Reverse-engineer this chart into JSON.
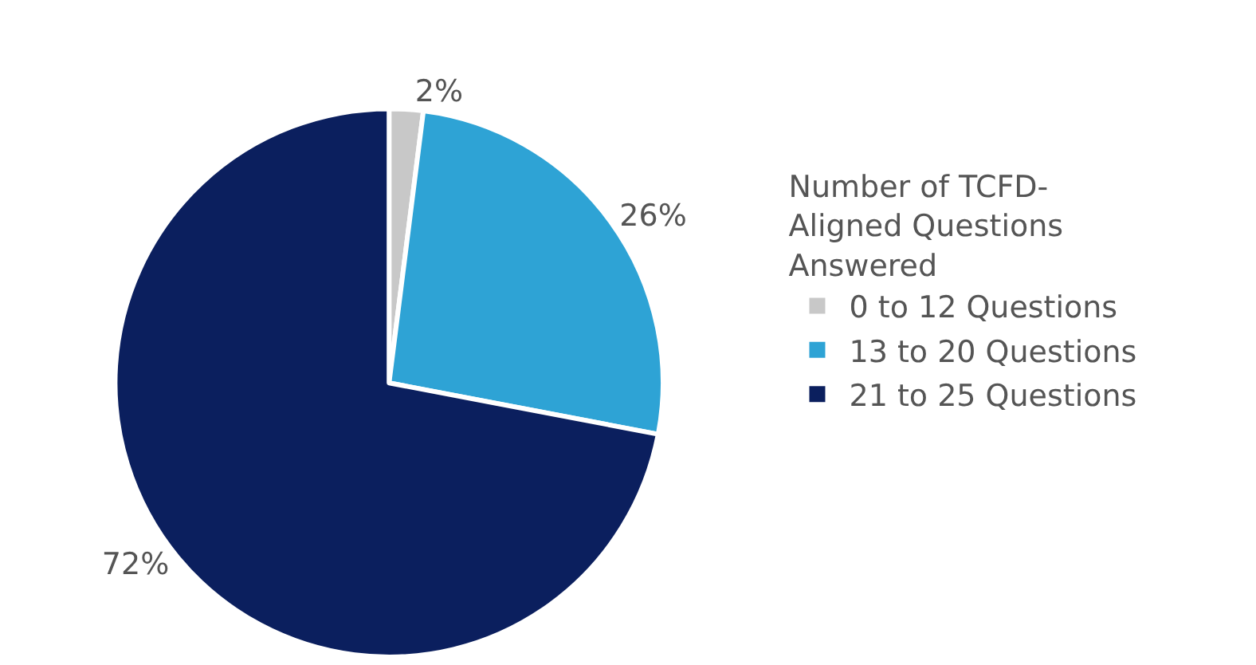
{
  "chart_data": {
    "type": "pie",
    "legend_title": "Number of TCFD-Aligned Questions Answered",
    "categories": [
      "0 to 12 Questions",
      "13 to 20 Questions",
      "21 to 25 Questions"
    ],
    "values": [
      2,
      26,
      72
    ],
    "colors": [
      "#c8c8c8",
      "#2ea3d5",
      "#0b1f5e"
    ],
    "value_labels": [
      "2%",
      "26%",
      "72%"
    ],
    "legend": "right"
  }
}
